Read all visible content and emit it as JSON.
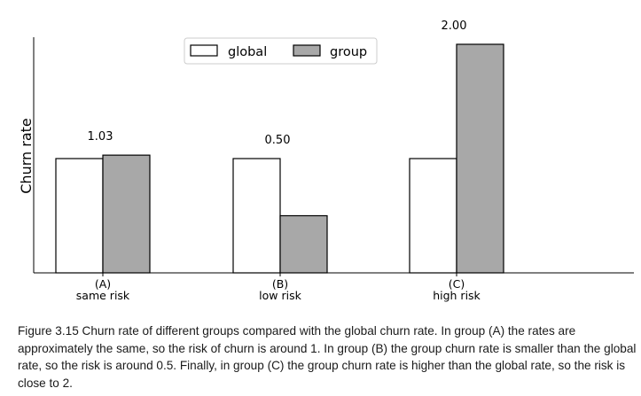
{
  "chart_data": {
    "type": "bar",
    "categories": [
      "(A)\nsame risk",
      "(B)\nlow risk",
      "(C)\nhigh risk"
    ],
    "category_lines": [
      [
        "(A)",
        "same risk"
      ],
      [
        "(B)",
        "low risk"
      ],
      [
        "(C)",
        "high risk"
      ]
    ],
    "series": [
      {
        "name": "global",
        "values": [
          1.0,
          1.0,
          1.0
        ],
        "color": "#ffffff"
      },
      {
        "name": "group",
        "values": [
          1.03,
          0.5,
          2.0
        ],
        "color": "#a8a8a8"
      }
    ],
    "annotations": [
      "1.03",
      "0.50",
      "2.00"
    ],
    "ylabel": "Churn rate",
    "xlabel": "",
    "ylim": [
      0,
      2.0
    ],
    "legend_position": "top-center",
    "grid": false,
    "y_ticks_shown": false
  },
  "caption": {
    "label": "Figure 3.15",
    "text": "Churn rate of different groups compared with the global churn rate. In group (A) the rates are approximately the same, so the risk of churn is around 1. In group (B) the group churn rate is smaller than the global rate, so the risk is around 0.5. Finally, in group (C) the group churn rate is higher than the global rate, so the risk is close to 2."
  }
}
